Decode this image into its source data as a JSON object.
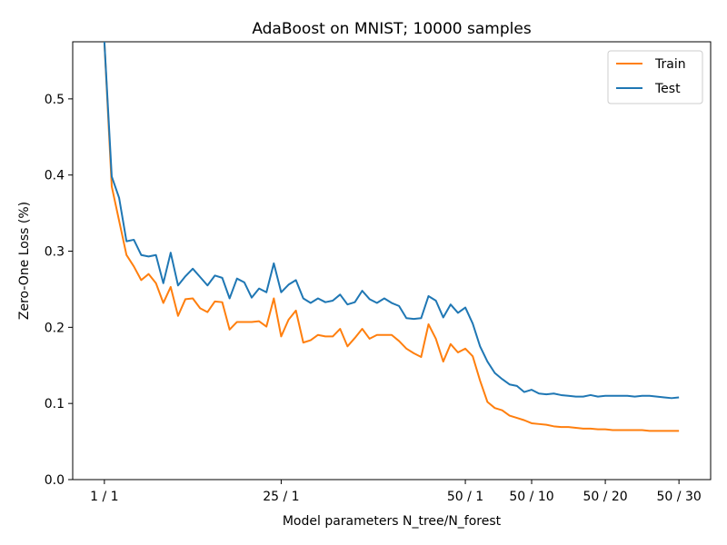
{
  "chart_data": {
    "type": "line",
    "title": "AdaBoost on MNIST; 10000 samples",
    "xlabel": "Model parameters N_tree/N_forest",
    "ylabel": "Zero-One Loss (%)",
    "ylim": [
      0,
      0.575
    ],
    "y_ticks": [
      0.0,
      0.1,
      0.2,
      0.3,
      0.4,
      0.5
    ],
    "y_tick_labels": [
      "0.0",
      "0.1",
      "0.2",
      "0.3",
      "0.4",
      "0.5"
    ],
    "x_ticks": [
      {
        "x": 1,
        "label": "1 / 1"
      },
      {
        "x": 25,
        "label": "25 / 1"
      },
      {
        "x": 50,
        "label": "50 / 1"
      },
      {
        "x": 59,
        "label": "50 / 10"
      },
      {
        "x": 69,
        "label": "50 / 20"
      },
      {
        "x": 79,
        "label": "50 / 30"
      }
    ],
    "xlim": [
      -3.3,
      83.3
    ],
    "grid": false,
    "legend": "top-right",
    "x": [
      1,
      2,
      3,
      4,
      5,
      6,
      7,
      8,
      9,
      10,
      11,
      12,
      13,
      14,
      15,
      16,
      17,
      18,
      19,
      20,
      21,
      22,
      23,
      24,
      25,
      26,
      27,
      28,
      29,
      30,
      31,
      32,
      33,
      34,
      35,
      36,
      37,
      38,
      39,
      40,
      41,
      42,
      43,
      44,
      45,
      46,
      47,
      48,
      49,
      50,
      51,
      52,
      53,
      54,
      55,
      56,
      57,
      58,
      59,
      60,
      61,
      62,
      63,
      64,
      65,
      66,
      67,
      68,
      69,
      70,
      71,
      72,
      73,
      74,
      75,
      76,
      77,
      78,
      79
    ],
    "series": [
      {
        "name": "Train",
        "color": "#ff7f0e",
        "values": [
          0.575,
          0.385,
          0.34,
          0.295,
          0.28,
          0.262,
          0.27,
          0.258,
          0.232,
          0.253,
          0.215,
          0.237,
          0.238,
          0.225,
          0.22,
          0.234,
          0.233,
          0.197,
          0.207,
          0.207,
          0.207,
          0.208,
          0.201,
          0.238,
          0.188,
          0.21,
          0.222,
          0.18,
          0.183,
          0.19,
          0.188,
          0.188,
          0.198,
          0.175,
          0.186,
          0.198,
          0.185,
          0.19,
          0.19,
          0.19,
          0.182,
          0.172,
          0.166,
          0.161,
          0.204,
          0.185,
          0.155,
          0.178,
          0.167,
          0.172,
          0.162,
          0.13,
          0.102,
          0.094,
          0.091,
          0.084,
          0.081,
          0.078,
          0.074,
          0.073,
          0.072,
          0.07,
          0.069,
          0.069,
          0.068,
          0.067,
          0.067,
          0.066,
          0.066,
          0.065,
          0.065,
          0.065,
          0.065,
          0.065,
          0.064,
          0.064,
          0.064,
          0.064,
          0.064
        ]
      },
      {
        "name": "Test",
        "color": "#1f77b4",
        "values": [
          0.575,
          0.398,
          0.37,
          0.313,
          0.315,
          0.295,
          0.293,
          0.295,
          0.258,
          0.298,
          0.255,
          0.267,
          0.277,
          0.266,
          0.255,
          0.268,
          0.265,
          0.238,
          0.264,
          0.259,
          0.239,
          0.251,
          0.246,
          0.284,
          0.246,
          0.256,
          0.262,
          0.238,
          0.232,
          0.238,
          0.233,
          0.235,
          0.243,
          0.23,
          0.233,
          0.248,
          0.237,
          0.232,
          0.238,
          0.232,
          0.228,
          0.212,
          0.211,
          0.212,
          0.241,
          0.235,
          0.213,
          0.23,
          0.219,
          0.226,
          0.205,
          0.175,
          0.155,
          0.14,
          0.132,
          0.125,
          0.123,
          0.115,
          0.118,
          0.113,
          0.112,
          0.113,
          0.111,
          0.11,
          0.109,
          0.109,
          0.111,
          0.109,
          0.11,
          0.11,
          0.11,
          0.11,
          0.109,
          0.11,
          0.11,
          0.109,
          0.108,
          0.107,
          0.108
        ]
      }
    ]
  }
}
